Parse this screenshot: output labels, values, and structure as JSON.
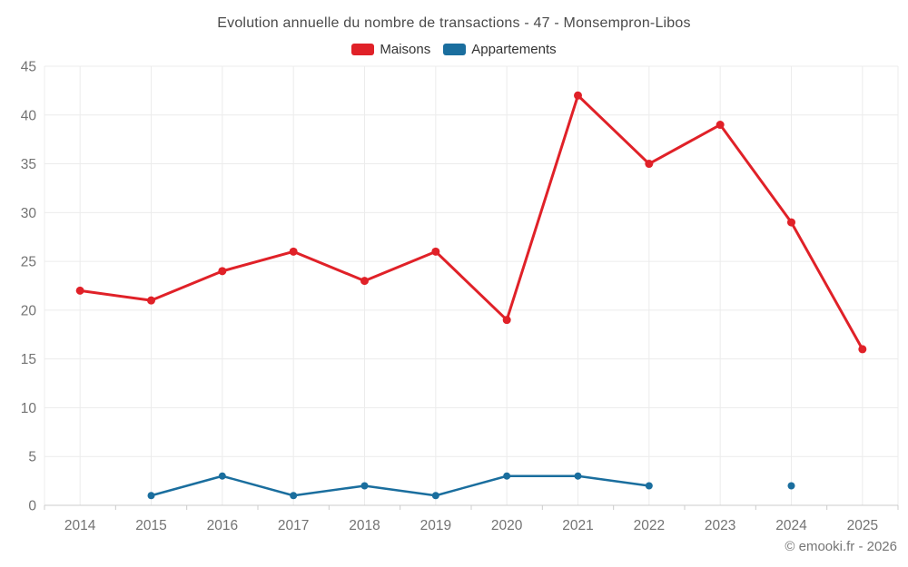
{
  "page": {
    "footer": "© emooki.fr - 2026"
  },
  "chart_data": {
    "type": "line",
    "title": "Evolution annuelle du nombre de transactions - 47 - Monsempron-Libos",
    "categories": [
      "2014",
      "2015",
      "2016",
      "2017",
      "2018",
      "2019",
      "2020",
      "2021",
      "2022",
      "2023",
      "2024",
      "2025"
    ],
    "series": [
      {
        "name": "Maisons",
        "color": "#e02128",
        "values": [
          22,
          21,
          24,
          26,
          23,
          26,
          19,
          42,
          35,
          39,
          29,
          16
        ]
      },
      {
        "name": "Appartements",
        "color": "#1a6e9e",
        "values": [
          null,
          1,
          3,
          1,
          2,
          1,
          3,
          3,
          2,
          null,
          2,
          null
        ]
      }
    ],
    "yticks": [
      0,
      5,
      10,
      15,
      20,
      25,
      30,
      35,
      40,
      45
    ],
    "ylim": [
      0,
      45
    ],
    "grid": true,
    "legend_position": "top",
    "colors": {
      "gridline": "#ececec",
      "axis_line": "#cccccc",
      "tick_label": "#737373"
    }
  }
}
